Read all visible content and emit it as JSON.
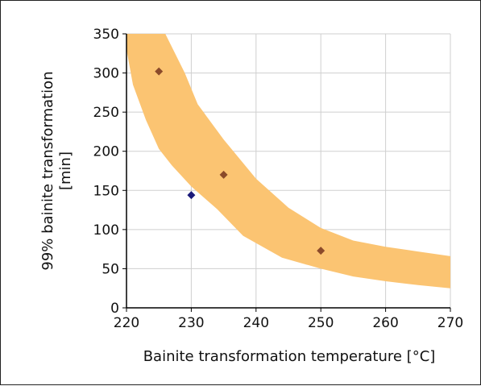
{
  "chart_data": {
    "type": "scatter",
    "title": "",
    "xlabel": "Bainite transformation temperature [°C]",
    "ylabel": [
      "99% bainite transformation",
      "[min]"
    ],
    "xlim": [
      220,
      270
    ],
    "ylim": [
      0,
      350
    ],
    "xticks": [
      220,
      230,
      240,
      250,
      260,
      270
    ],
    "yticks": [
      0,
      50,
      100,
      150,
      200,
      250,
      300,
      350
    ],
    "xtick_labels": [
      "220",
      "230",
      "240",
      "250",
      "260",
      "270"
    ],
    "ytick_labels": [
      "0",
      "50",
      "100",
      "150",
      "200",
      "250",
      "300",
      "350"
    ],
    "grid": true,
    "legend": "none",
    "series": [
      {
        "points": [
          {
            "x": 225,
            "y": 302,
            "color": "#8b4a2a"
          },
          {
            "x": 230,
            "y": 144,
            "color": "#1a1a7a"
          },
          {
            "x": 235,
            "y": 170,
            "color": "#8b4a2a"
          },
          {
            "x": 250,
            "y": 73,
            "color": "#8b4a2a"
          }
        ]
      }
    ],
    "band": {
      "color": "#fbc472",
      "upper": [
        [
          226,
          350
        ],
        [
          229,
          300
        ],
        [
          231,
          260
        ],
        [
          235,
          215
        ],
        [
          240,
          165
        ],
        [
          245,
          128
        ],
        [
          250,
          102
        ],
        [
          255,
          86
        ],
        [
          260,
          78
        ],
        [
          265,
          72
        ],
        [
          270,
          66
        ]
      ],
      "lower": [
        [
          270,
          25
        ],
        [
          265,
          29
        ],
        [
          260,
          34
        ],
        [
          255,
          40
        ],
        [
          250,
          50
        ],
        [
          244,
          64
        ],
        [
          238,
          92
        ],
        [
          234,
          126
        ],
        [
          230,
          155
        ],
        [
          227,
          182
        ],
        [
          225,
          203
        ],
        [
          223,
          240
        ],
        [
          221,
          285
        ],
        [
          220,
          330
        ],
        [
          220,
          350
        ]
      ]
    }
  }
}
